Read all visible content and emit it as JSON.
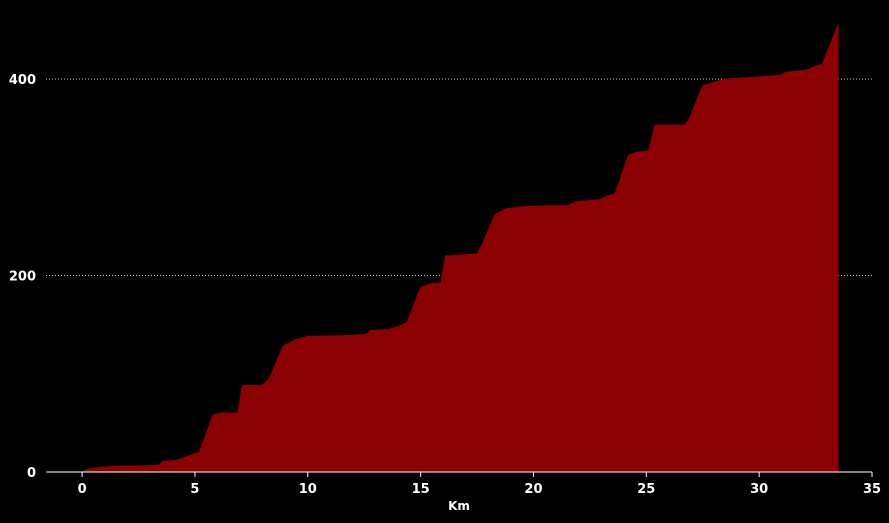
{
  "colors": {
    "background": "#000000",
    "area_fill": "#8b0000",
    "text": "#ffffff",
    "grid": "#cfcfcf"
  },
  "chart_data": {
    "type": "area",
    "title": "",
    "xlabel": "Km",
    "ylabel": "",
    "xlim": [
      -1.6,
      35
    ],
    "ylim": [
      0,
      460
    ],
    "x_ticks": [
      0,
      5,
      10,
      15,
      20,
      25,
      30,
      35
    ],
    "y_ticks": [
      0,
      200,
      400
    ],
    "grid": "horizontal dotted",
    "legend": "none",
    "series": [
      {
        "x": [
          0,
          0.3,
          1.0,
          1.5,
          2.5,
          3.4,
          3.6,
          4.2,
          4.8,
          5.2,
          5.8,
          6.2,
          6.9,
          7.1,
          8.0,
          8.3,
          8.9,
          9.5,
          10.0,
          12.0,
          12.6,
          12.8,
          13.6,
          14.0,
          14.4,
          15.0,
          15.5,
          15.9,
          16.1,
          16.3,
          17.5,
          17.7,
          18.3,
          18.8,
          19.5,
          20.5,
          21.5,
          21.9,
          22.9,
          23.3,
          23.6,
          23.8,
          24.2,
          24.5,
          25.1,
          25.4,
          26.7,
          26.9,
          27.5,
          28.5,
          30.0,
          31.0,
          31.2,
          32.1,
          32.4,
          32.8,
          33.5
        ],
        "y": [
          0,
          3,
          5,
          6,
          6,
          7,
          11,
          12,
          17,
          20,
          58,
          60,
          60,
          88,
          88,
          95,
          128,
          135,
          138,
          139,
          140,
          144,
          145,
          148,
          152,
          188,
          192,
          192,
          220,
          220,
          222,
          230,
          262,
          268,
          270,
          271,
          271,
          275,
          277,
          281,
          283,
          295,
          322,
          325,
          327,
          353,
          353,
          359,
          393,
          400,
          402,
          404,
          407,
          409,
          412,
          415,
          455
        ]
      }
    ]
  }
}
